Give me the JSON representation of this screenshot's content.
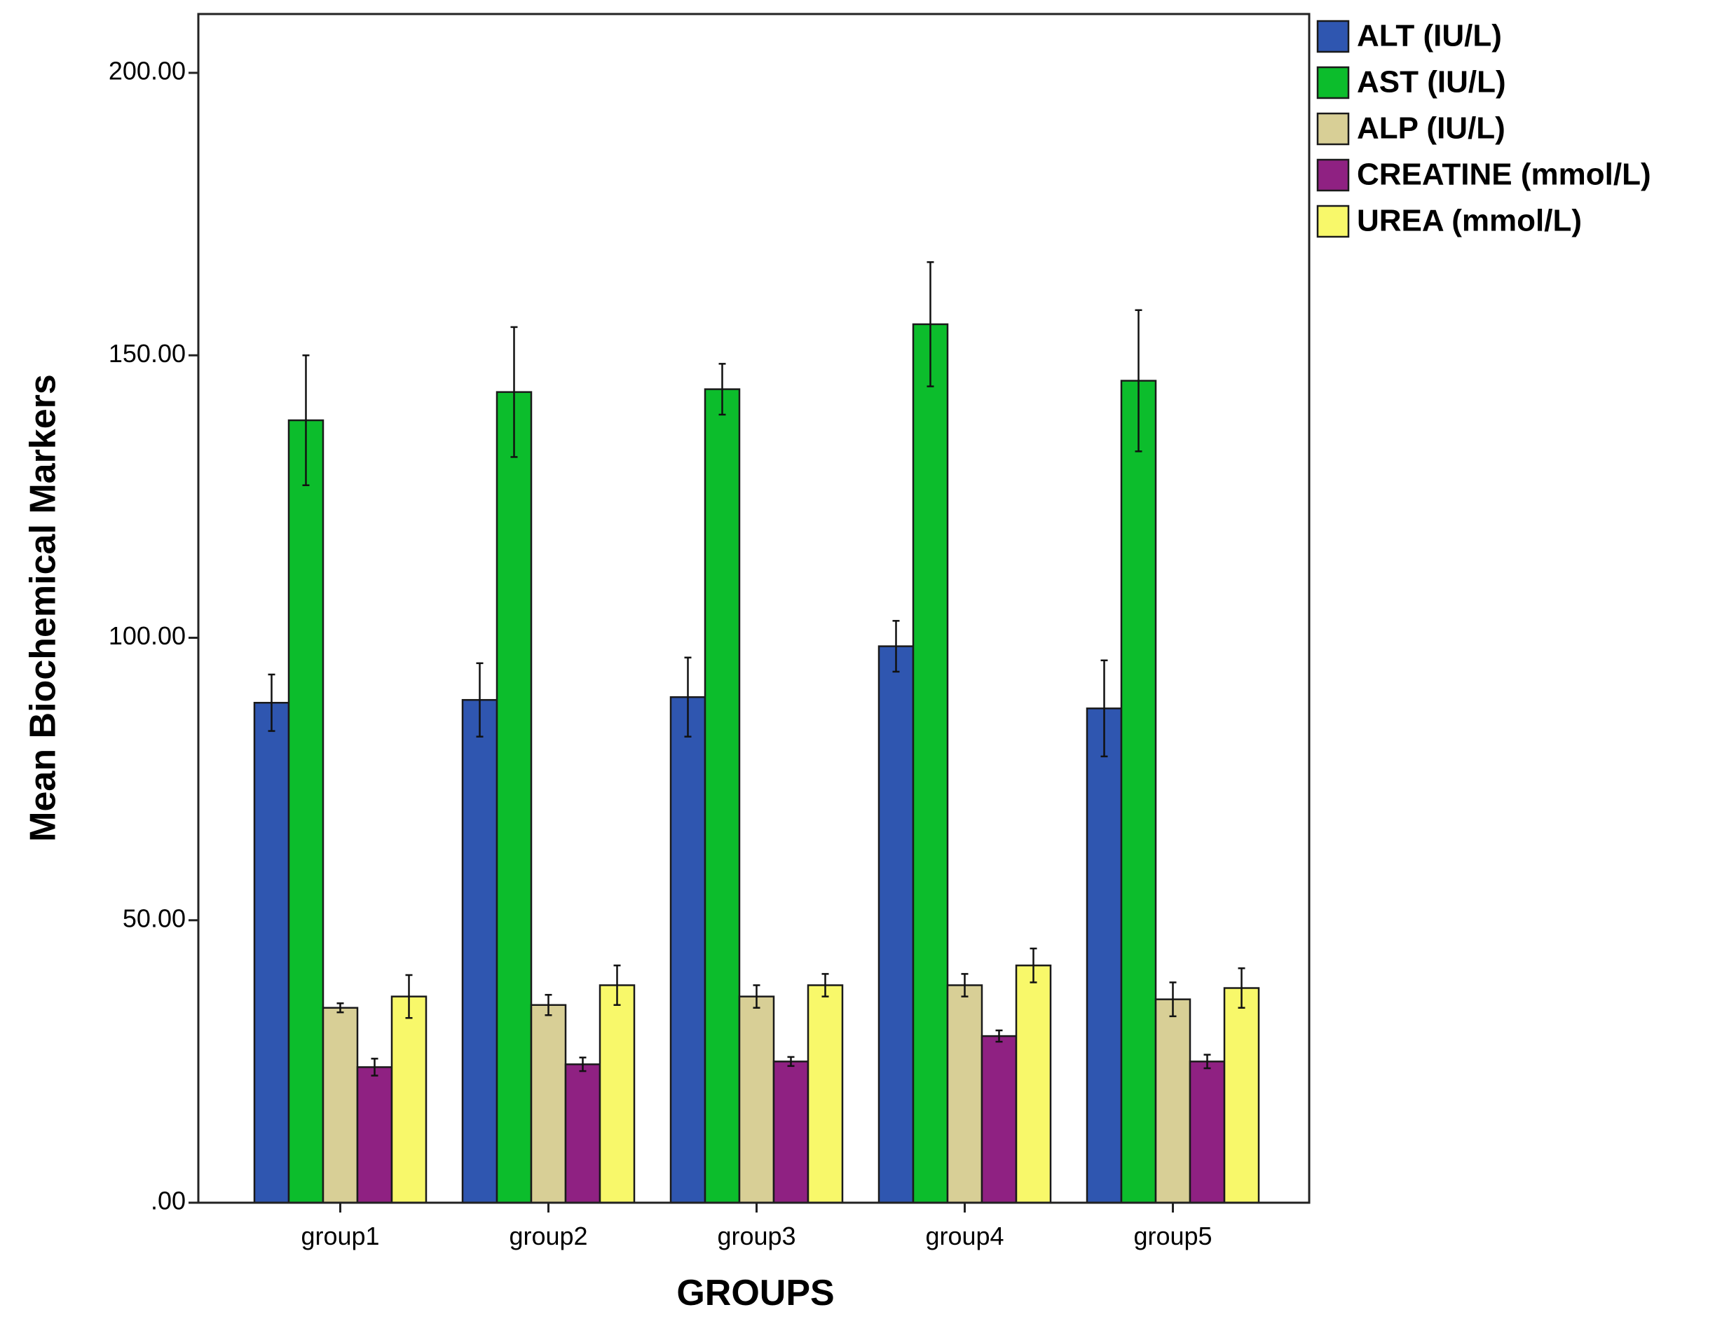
{
  "chart_data": {
    "type": "bar",
    "title": "",
    "xlabel": "GROUPS",
    "ylabel": "Mean Biochemical Markers",
    "ylim": [
      0,
      210
    ],
    "yticks": [
      0,
      50,
      100,
      150,
      200
    ],
    "ytick_labels": [
      ".00",
      "50.00",
      "100.00",
      "150.00",
      "200.00"
    ],
    "categories": [
      "group1",
      "group2",
      "group3",
      "group4",
      "group5"
    ],
    "legend_position": "top-right, outside plot",
    "error_bars": true,
    "series": [
      {
        "name": "ALT (IU/L)",
        "color": "#2f56b0",
        "values": [
          88.5,
          89.0,
          89.5,
          98.5,
          87.5
        ],
        "errors": [
          5.0,
          6.5,
          7.0,
          4.5,
          8.5
        ]
      },
      {
        "name": "AST (IU/L)",
        "color": "#0cbd2c",
        "values": [
          138.5,
          143.5,
          144.0,
          155.5,
          145.5
        ],
        "errors": [
          11.5,
          11.5,
          4.5,
          11.0,
          12.5
        ]
      },
      {
        "name": "ALP (IU/L)",
        "color": "#d8cf96",
        "values": [
          34.5,
          35.0,
          36.5,
          38.5,
          36.0
        ],
        "errors": [
          0.8,
          1.8,
          2.0,
          2.0,
          3.0
        ]
      },
      {
        "name": "CREATINE (mmol/L)",
        "color": "#8f2182",
        "values": [
          24.0,
          24.5,
          25.0,
          29.5,
          25.0
        ],
        "errors": [
          1.5,
          1.2,
          0.8,
          1.0,
          1.2
        ]
      },
      {
        "name": "UREA (mmol/L)",
        "color": "#f8f86a",
        "values": [
          36.5,
          38.5,
          38.5,
          42.0,
          38.0
        ],
        "errors": [
          3.8,
          3.5,
          2.0,
          3.0,
          3.5
        ]
      }
    ]
  }
}
